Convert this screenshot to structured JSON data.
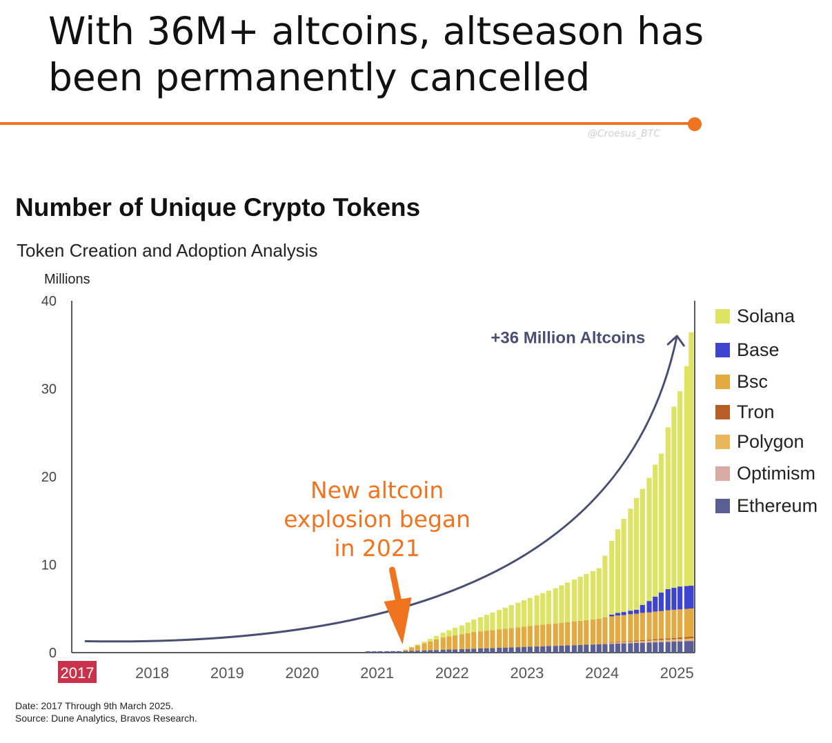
{
  "headline": "With 36M+ altcoins, altseason has been permanently cancelled",
  "watermark": "@Croesus_BTC",
  "accent_color": "#f0731f",
  "chart_data": {
    "type": "bar",
    "stacked": true,
    "title": "Number of Unique Crypto Tokens",
    "subtitle": "Token Creation and Adoption Analysis",
    "ylabel": "Millions",
    "xlabel": "",
    "ylim": [
      0,
      40
    ],
    "y_ticks": [
      0,
      10,
      20,
      30,
      40
    ],
    "x_ticks": [
      "2017",
      "2018",
      "2019",
      "2020",
      "2021",
      "2022",
      "2023",
      "2024",
      "2025"
    ],
    "highlighted_x_tick": "2017",
    "grid": false,
    "legend_position": "right",
    "series": [
      {
        "name": "Ethereum",
        "color": "#5b5e93"
      },
      {
        "name": "Optimism",
        "color": "#d9a9a3"
      },
      {
        "name": "Polygon",
        "color": "#e9b65c"
      },
      {
        "name": "Tron",
        "color": "#b85d25"
      },
      {
        "name": "Bsc",
        "color": "#e3aa41"
      },
      {
        "name": "Base",
        "color": "#3f44d0"
      },
      {
        "name": "Solana",
        "color": "#dde464"
      }
    ],
    "legend_order": [
      "Solana",
      "Base",
      "Bsc",
      "Tron",
      "Polygon",
      "Optimism",
      "Ethereum"
    ],
    "bars": [
      {
        "x": 2020.88,
        "Ethereum": 0.15
      },
      {
        "x": 2020.96,
        "Ethereum": 0.15
      },
      {
        "x": 2021.04,
        "Ethereum": 0.16
      },
      {
        "x": 2021.13,
        "Ethereum": 0.16
      },
      {
        "x": 2021.21,
        "Ethereum": 0.17
      },
      {
        "x": 2021.29,
        "Ethereum": 0.17
      },
      {
        "x": 2021.38,
        "Ethereum": 0.18,
        "Bsc": 0.15
      },
      {
        "x": 2021.46,
        "Ethereum": 0.2,
        "Bsc": 0.4,
        "Solana": 0.05
      },
      {
        "x": 2021.54,
        "Ethereum": 0.22,
        "Bsc": 0.6,
        "Solana": 0.1
      },
      {
        "x": 2021.63,
        "Ethereum": 0.25,
        "Bsc": 0.8,
        "Solana": 0.2
      },
      {
        "x": 2021.71,
        "Ethereum": 0.27,
        "Bsc": 1.0,
        "Solana": 0.3
      },
      {
        "x": 2021.79,
        "Ethereum": 0.3,
        "Bsc": 1.2,
        "Solana": 0.4
      },
      {
        "x": 2021.88,
        "Ethereum": 0.32,
        "Bsc": 1.4,
        "Solana": 0.55
      },
      {
        "x": 2021.96,
        "Ethereum": 0.35,
        "Bsc": 1.5,
        "Solana": 0.7
      },
      {
        "x": 2022.04,
        "Ethereum": 0.37,
        "Bsc": 1.6,
        "Solana": 0.85
      },
      {
        "x": 2022.13,
        "Ethereum": 0.4,
        "Bsc": 1.7,
        "Solana": 1.0
      },
      {
        "x": 2022.21,
        "Ethereum": 0.42,
        "Bsc": 1.8,
        "Solana": 1.2
      },
      {
        "x": 2022.29,
        "Ethereum": 0.45,
        "Bsc": 1.9,
        "Solana": 1.4
      },
      {
        "x": 2022.38,
        "Ethereum": 0.47,
        "Bsc": 1.95,
        "Solana": 1.6
      },
      {
        "x": 2022.46,
        "Ethereum": 0.5,
        "Bsc": 2.0,
        "Solana": 1.8
      },
      {
        "x": 2022.54,
        "Ethereum": 0.52,
        "Bsc": 2.05,
        "Solana": 2.0
      },
      {
        "x": 2022.63,
        "Ethereum": 0.55,
        "Bsc": 2.1,
        "Solana": 2.2
      },
      {
        "x": 2022.71,
        "Ethereum": 0.57,
        "Bsc": 2.15,
        "Solana": 2.4
      },
      {
        "x": 2022.79,
        "Ethereum": 0.6,
        "Bsc": 2.2,
        "Solana": 2.6
      },
      {
        "x": 2022.88,
        "Ethereum": 0.62,
        "Bsc": 2.25,
        "Solana": 2.8
      },
      {
        "x": 2022.96,
        "Ethereum": 0.65,
        "Bsc": 2.3,
        "Solana": 3.0
      },
      {
        "x": 2023.04,
        "Ethereum": 0.67,
        "Bsc": 2.35,
        "Solana": 3.2
      },
      {
        "x": 2023.13,
        "Ethereum": 0.7,
        "Bsc": 2.4,
        "Solana": 3.4
      },
      {
        "x": 2023.21,
        "Ethereum": 0.72,
        "Bsc": 2.45,
        "Solana": 3.6
      },
      {
        "x": 2023.29,
        "Ethereum": 0.75,
        "Bsc": 2.5,
        "Solana": 3.8
      },
      {
        "x": 2023.38,
        "Ethereum": 0.77,
        "Bsc": 2.55,
        "Solana": 4.0
      },
      {
        "x": 2023.46,
        "Ethereum": 0.8,
        "Bsc": 2.6,
        "Solana": 4.25
      },
      {
        "x": 2023.54,
        "Ethereum": 0.82,
        "Bsc": 2.65,
        "Solana": 4.5
      },
      {
        "x": 2023.63,
        "Ethereum": 0.85,
        "Bsc": 2.7,
        "Solana": 4.75
      },
      {
        "x": 2023.71,
        "Ethereum": 0.87,
        "Bsc": 2.75,
        "Solana": 5.0
      },
      {
        "x": 2023.79,
        "Ethereum": 0.9,
        "Bsc": 2.8,
        "Solana": 5.25
      },
      {
        "x": 2023.88,
        "Ethereum": 0.92,
        "Bsc": 2.85,
        "Solana": 5.5
      },
      {
        "x": 2023.96,
        "Ethereum": 0.95,
        "Bsc": 2.9,
        "Solana": 5.75
      },
      {
        "x": 2024.04,
        "Ethereum": 0.97,
        "Optimism": 0.05,
        "Polygon": 0.05,
        "Tron": 0.05,
        "Bsc": 2.9,
        "Solana": 7.0
      },
      {
        "x": 2024.13,
        "Ethereum": 1.0,
        "Optimism": 0.05,
        "Polygon": 0.06,
        "Tron": 0.06,
        "Bsc": 2.95,
        "Base": 0.2,
        "Solana": 8.4
      },
      {
        "x": 2024.21,
        "Ethereum": 1.02,
        "Optimism": 0.06,
        "Polygon": 0.07,
        "Tron": 0.07,
        "Bsc": 3.0,
        "Base": 0.3,
        "Solana": 9.5
      },
      {
        "x": 2024.29,
        "Ethereum": 1.05,
        "Optimism": 0.06,
        "Polygon": 0.08,
        "Tron": 0.08,
        "Bsc": 3.0,
        "Base": 0.35,
        "Solana": 10.6
      },
      {
        "x": 2024.38,
        "Ethereum": 1.07,
        "Optimism": 0.07,
        "Polygon": 0.09,
        "Tron": 0.09,
        "Bsc": 3.05,
        "Base": 0.4,
        "Solana": 11.6
      },
      {
        "x": 2024.46,
        "Ethereum": 1.1,
        "Optimism": 0.07,
        "Polygon": 0.1,
        "Tron": 0.1,
        "Bsc": 3.05,
        "Base": 0.45,
        "Solana": 12.7
      },
      {
        "x": 2024.54,
        "Ethereum": 1.12,
        "Optimism": 0.08,
        "Polygon": 0.11,
        "Tron": 0.11,
        "Bsc": 3.1,
        "Base": 0.9,
        "Solana": 13.2
      },
      {
        "x": 2024.63,
        "Ethereum": 1.15,
        "Optimism": 0.08,
        "Polygon": 0.12,
        "Tron": 0.12,
        "Bsc": 3.1,
        "Base": 1.3,
        "Solana": 14.0
      },
      {
        "x": 2024.71,
        "Ethereum": 1.17,
        "Optimism": 0.09,
        "Polygon": 0.13,
        "Tron": 0.13,
        "Bsc": 3.15,
        "Base": 1.7,
        "Solana": 15.0
      },
      {
        "x": 2024.79,
        "Ethereum": 1.2,
        "Optimism": 0.09,
        "Polygon": 0.14,
        "Tron": 0.14,
        "Bsc": 3.15,
        "Base": 2.1,
        "Solana": 15.8
      },
      {
        "x": 2024.88,
        "Ethereum": 1.22,
        "Optimism": 0.1,
        "Polygon": 0.15,
        "Tron": 0.15,
        "Bsc": 3.2,
        "Base": 2.4,
        "Solana": 18.4
      },
      {
        "x": 2024.96,
        "Ethereum": 1.25,
        "Optimism": 0.1,
        "Polygon": 0.16,
        "Tron": 0.16,
        "Bsc": 3.2,
        "Base": 2.5,
        "Solana": 20.6
      },
      {
        "x": 2025.04,
        "Ethereum": 1.27,
        "Optimism": 0.11,
        "Polygon": 0.17,
        "Tron": 0.17,
        "Bsc": 3.2,
        "Base": 2.6,
        "Solana": 22.2
      },
      {
        "x": 2025.13,
        "Ethereum": 1.3,
        "Optimism": 0.11,
        "Polygon": 0.18,
        "Tron": 0.18,
        "Bsc": 3.2,
        "Base": 2.6,
        "Solana": 25.0
      },
      {
        "x": 2025.19,
        "Ethereum": 1.32,
        "Optimism": 0.12,
        "Polygon": 0.19,
        "Tron": 0.19,
        "Bsc": 3.2,
        "Base": 2.6,
        "Solana": 28.8
      }
    ],
    "trend_curve": {
      "start_x": 2017.1,
      "start_y": 1.3,
      "end_x": 2025.0,
      "end_y": 36.0
    },
    "annotations": [
      {
        "text": "+36 Million Altcoins",
        "x": 2024.3,
        "y": 35.8,
        "color": "#4a4f72"
      },
      {
        "lines": [
          "New altcoin",
          "explosion began",
          "in 2021"
        ],
        "x": 2021.0,
        "y": 18.0,
        "color": "#f0731f",
        "arrow_to_x": 2021.33,
        "arrow_to_y": 0.2
      }
    ]
  },
  "footnote": {
    "date": "Date: 2017 Through 9th March 2025.",
    "source": "Source: Dune Analytics, Bravos Research."
  }
}
